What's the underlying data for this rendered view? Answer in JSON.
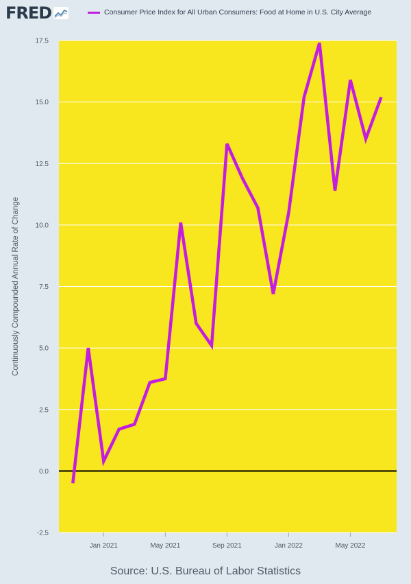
{
  "header": {
    "logo_text": "FRED",
    "logo_icon": "line-graph-icon"
  },
  "legend": {
    "label": "Consumer Price Index for All Urban Consumers: Food at Home in U.S. City Average"
  },
  "footer": {
    "source": "Source: U.S. Bureau of Labor Statistics"
  },
  "colors": {
    "background": "#e1e9f0",
    "plot_background": "#f8e61e",
    "series": "#c31ee0",
    "zero_line": "#000000",
    "grid": "#ffffff"
  },
  "chart_data": {
    "type": "line",
    "title": "",
    "xlabel": "",
    "ylabel": "Continuously Compounded Annual Rate of Change",
    "ylim": [
      -2.5,
      17.5
    ],
    "yticks": [
      -2.5,
      0.0,
      2.5,
      5.0,
      7.5,
      10.0,
      12.5,
      15.0,
      17.5
    ],
    "ytick_labels": [
      "-2.5",
      "0.0",
      "2.5",
      "5.0",
      "7.5",
      "10.0",
      "12.5",
      "15.0",
      "17.5"
    ],
    "xlim": [
      "2020-10",
      "2022-08"
    ],
    "xticks": [
      "2021-01",
      "2021-05",
      "2021-09",
      "2022-01",
      "2022-05"
    ],
    "xtick_labels": [
      "Jan 2021",
      "May 2021",
      "Sep 2021",
      "Jan 2022",
      "May 2022"
    ],
    "grid": true,
    "legend_position": "top",
    "series": [
      {
        "name": "Consumer Price Index for All Urban Consumers: Food at Home in U.S. City Average",
        "x": [
          "2020-11",
          "2020-12",
          "2021-01",
          "2021-02",
          "2021-03",
          "2021-04",
          "2021-05",
          "2021-06",
          "2021-07",
          "2021-08",
          "2021-09",
          "2021-10",
          "2021-11",
          "2021-12",
          "2022-01",
          "2022-02",
          "2022-03",
          "2022-04",
          "2022-05",
          "2022-06",
          "2022-07"
        ],
        "values": [
          -0.5,
          5.0,
          0.4,
          1.7,
          1.9,
          3.6,
          3.75,
          10.1,
          6.0,
          5.1,
          13.3,
          11.9,
          10.7,
          7.2,
          10.5,
          15.2,
          17.4,
          11.4,
          15.9,
          13.5,
          15.2
        ]
      }
    ]
  }
}
